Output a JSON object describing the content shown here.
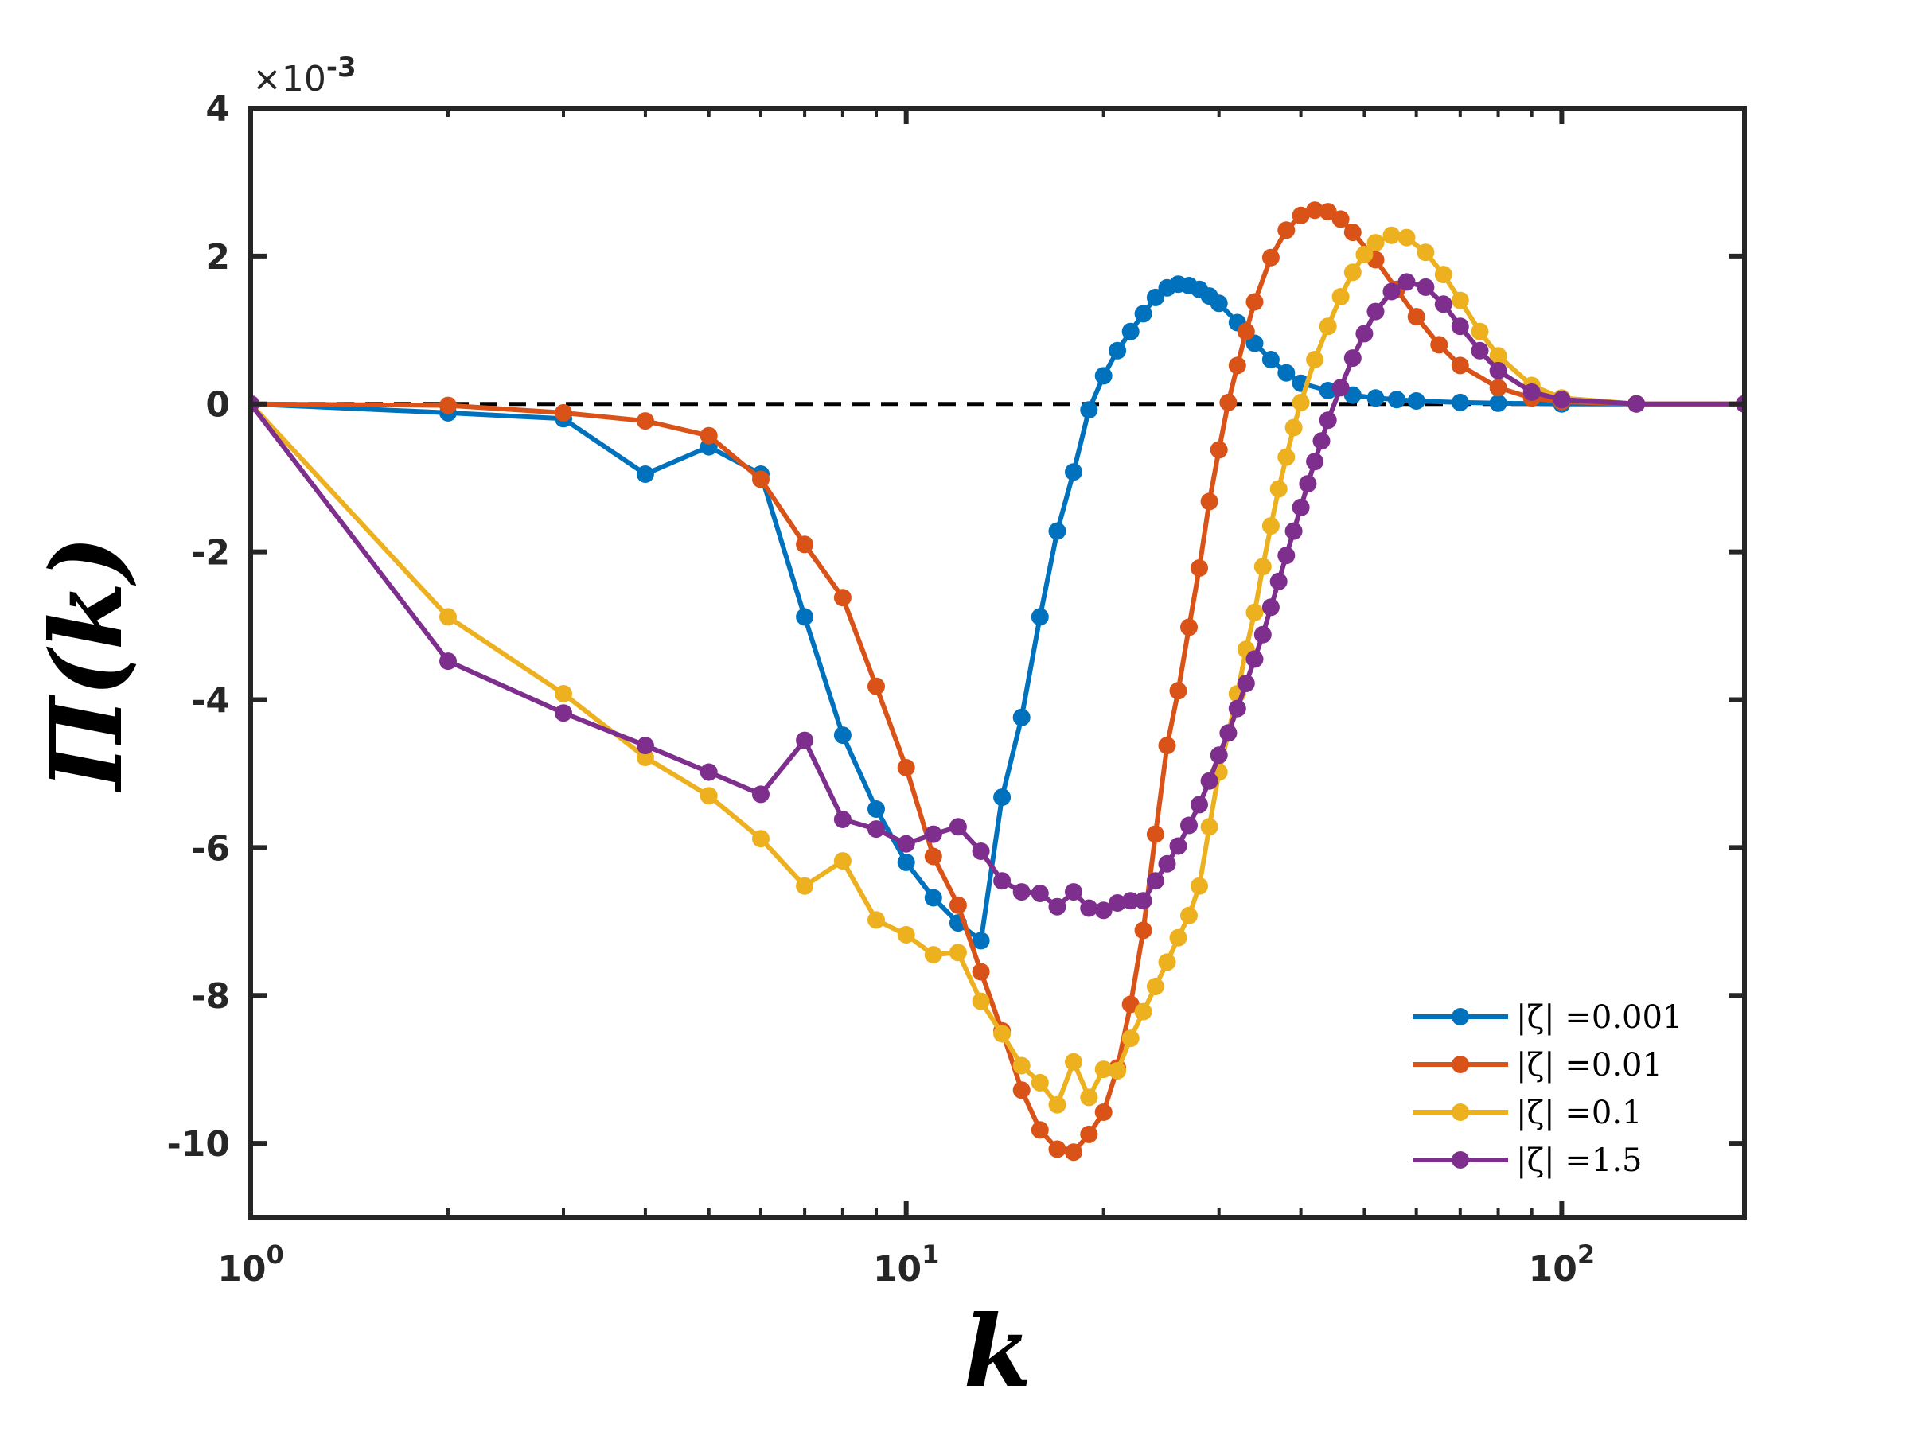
{
  "chart_data": {
    "type": "line",
    "title": "",
    "xlabel": "k",
    "ylabel": "Π(k)",
    "xscale": "log",
    "xlim": [
      1,
      190
    ],
    "ylim": [
      -11,
      4
    ],
    "y_multiplier_label": "×10",
    "y_multiplier_exponent": "-3",
    "x_ticks": [
      {
        "value": 1,
        "base": "10",
        "exp": "0"
      },
      {
        "value": 10,
        "base": "10",
        "exp": "1"
      },
      {
        "value": 100,
        "base": "10",
        "exp": "2"
      }
    ],
    "y_ticks": [
      {
        "value": 4,
        "label": "4"
      },
      {
        "value": 2,
        "label": "2"
      },
      {
        "value": 0,
        "label": "0"
      },
      {
        "value": -2,
        "label": "-2"
      },
      {
        "value": -4,
        "label": "-4"
      },
      {
        "value": -6,
        "label": "-6"
      },
      {
        "value": -8,
        "label": "-8"
      },
      {
        "value": -10,
        "label": "-10"
      }
    ],
    "reference_line": {
      "y": 0,
      "style": "dashed",
      "color": "#000000"
    },
    "legend_position": "bottom-right",
    "series": [
      {
        "name": "|ζ| =0.001",
        "color": "#0072BD",
        "x": [
          1,
          2,
          3,
          4,
          5,
          6,
          7,
          8,
          9,
          10,
          11,
          12,
          13,
          14,
          15,
          16,
          17,
          18,
          19,
          20,
          21,
          22,
          23,
          24,
          25,
          26,
          27,
          28,
          29,
          30,
          32,
          34,
          36,
          38,
          40,
          44,
          48,
          52,
          56,
          60,
          70,
          80,
          100,
          130,
          190
        ],
        "y": [
          0,
          -0.12,
          -0.2,
          -0.95,
          -0.58,
          -0.95,
          -2.88,
          -4.48,
          -5.48,
          -6.2,
          -6.68,
          -7.02,
          -7.26,
          -5.32,
          -4.24,
          -2.88,
          -1.72,
          -0.92,
          -0.08,
          0.38,
          0.72,
          0.98,
          1.22,
          1.44,
          1.57,
          1.62,
          1.6,
          1.55,
          1.46,
          1.36,
          1.1,
          0.82,
          0.6,
          0.42,
          0.28,
          0.18,
          0.12,
          0.08,
          0.06,
          0.04,
          0.02,
          0.01,
          0,
          0,
          0
        ]
      },
      {
        "name": "|ζ| =0.01",
        "color": "#D95319",
        "x": [
          1,
          2,
          3,
          4,
          5,
          6,
          7,
          8,
          9,
          10,
          11,
          12,
          13,
          14,
          15,
          16,
          17,
          18,
          19,
          20,
          21,
          22,
          23,
          24,
          25,
          26,
          27,
          28,
          29,
          30,
          31,
          32,
          33,
          34,
          36,
          38,
          40,
          42,
          44,
          46,
          48,
          52,
          56,
          60,
          65,
          70,
          80,
          90,
          100,
          130,
          190
        ],
        "y": [
          0,
          -0.02,
          -0.12,
          -0.23,
          -0.43,
          -1.02,
          -1.9,
          -2.62,
          -3.82,
          -4.92,
          -6.12,
          -6.78,
          -7.68,
          -8.48,
          -9.28,
          -9.82,
          -10.08,
          -10.12,
          -9.88,
          -9.58,
          -8.98,
          -8.12,
          -7.12,
          -5.82,
          -4.62,
          -3.88,
          -3.02,
          -2.22,
          -1.32,
          -0.62,
          0.02,
          0.52,
          0.98,
          1.38,
          1.98,
          2.35,
          2.55,
          2.62,
          2.6,
          2.5,
          2.32,
          1.95,
          1.55,
          1.18,
          0.8,
          0.52,
          0.22,
          0.08,
          0.03,
          0,
          0
        ]
      },
      {
        "name": "|ζ| =0.1",
        "color": "#EDB120",
        "x": [
          1,
          2,
          3,
          4,
          5,
          6,
          7,
          8,
          9,
          10,
          11,
          12,
          13,
          14,
          15,
          16,
          17,
          18,
          19,
          20,
          21,
          22,
          23,
          24,
          25,
          26,
          27,
          28,
          29,
          30,
          31,
          32,
          33,
          34,
          35,
          36,
          37,
          38,
          39,
          40,
          42,
          44,
          46,
          48,
          50,
          52,
          55,
          58,
          62,
          66,
          70,
          75,
          80,
          90,
          100,
          130,
          190
        ],
        "y": [
          0,
          -2.88,
          -3.92,
          -4.78,
          -5.3,
          -5.88,
          -6.52,
          -6.18,
          -6.98,
          -7.18,
          -7.45,
          -7.42,
          -8.08,
          -8.52,
          -8.95,
          -9.18,
          -9.48,
          -8.9,
          -9.38,
          -9.0,
          -9.02,
          -8.58,
          -8.22,
          -7.88,
          -7.55,
          -7.22,
          -6.92,
          -6.52,
          -5.72,
          -4.98,
          -4.45,
          -3.92,
          -3.32,
          -2.82,
          -2.2,
          -1.65,
          -1.15,
          -0.72,
          -0.32,
          0.02,
          0.6,
          1.05,
          1.45,
          1.78,
          2.02,
          2.18,
          2.28,
          2.25,
          2.05,
          1.75,
          1.4,
          0.98,
          0.65,
          0.25,
          0.08,
          0,
          0
        ]
      },
      {
        "name": "|ζ| =1.5",
        "color": "#7E2F8E",
        "x": [
          1,
          2,
          3,
          4,
          5,
          6,
          7,
          8,
          9,
          10,
          11,
          12,
          13,
          14,
          15,
          16,
          17,
          18,
          19,
          20,
          21,
          22,
          23,
          24,
          25,
          26,
          27,
          28,
          29,
          30,
          31,
          32,
          33,
          34,
          35,
          36,
          37,
          38,
          39,
          40,
          41,
          42,
          43,
          44,
          46,
          48,
          50,
          52,
          55,
          58,
          62,
          66,
          70,
          75,
          80,
          90,
          100,
          130,
          190
        ],
        "y": [
          0,
          -3.48,
          -4.18,
          -4.62,
          -4.98,
          -5.28,
          -4.55,
          -5.62,
          -5.75,
          -5.95,
          -5.82,
          -5.72,
          -6.05,
          -6.45,
          -6.6,
          -6.62,
          -6.8,
          -6.6,
          -6.82,
          -6.85,
          -6.75,
          -6.72,
          -6.72,
          -6.45,
          -6.22,
          -5.98,
          -5.7,
          -5.42,
          -5.1,
          -4.75,
          -4.45,
          -4.12,
          -3.78,
          -3.45,
          -3.12,
          -2.75,
          -2.4,
          -2.05,
          -1.72,
          -1.4,
          -1.08,
          -0.78,
          -0.5,
          -0.22,
          0.22,
          0.62,
          0.95,
          1.25,
          1.52,
          1.65,
          1.58,
          1.35,
          1.05,
          0.72,
          0.45,
          0.16,
          0.06,
          0,
          0
        ]
      }
    ]
  }
}
